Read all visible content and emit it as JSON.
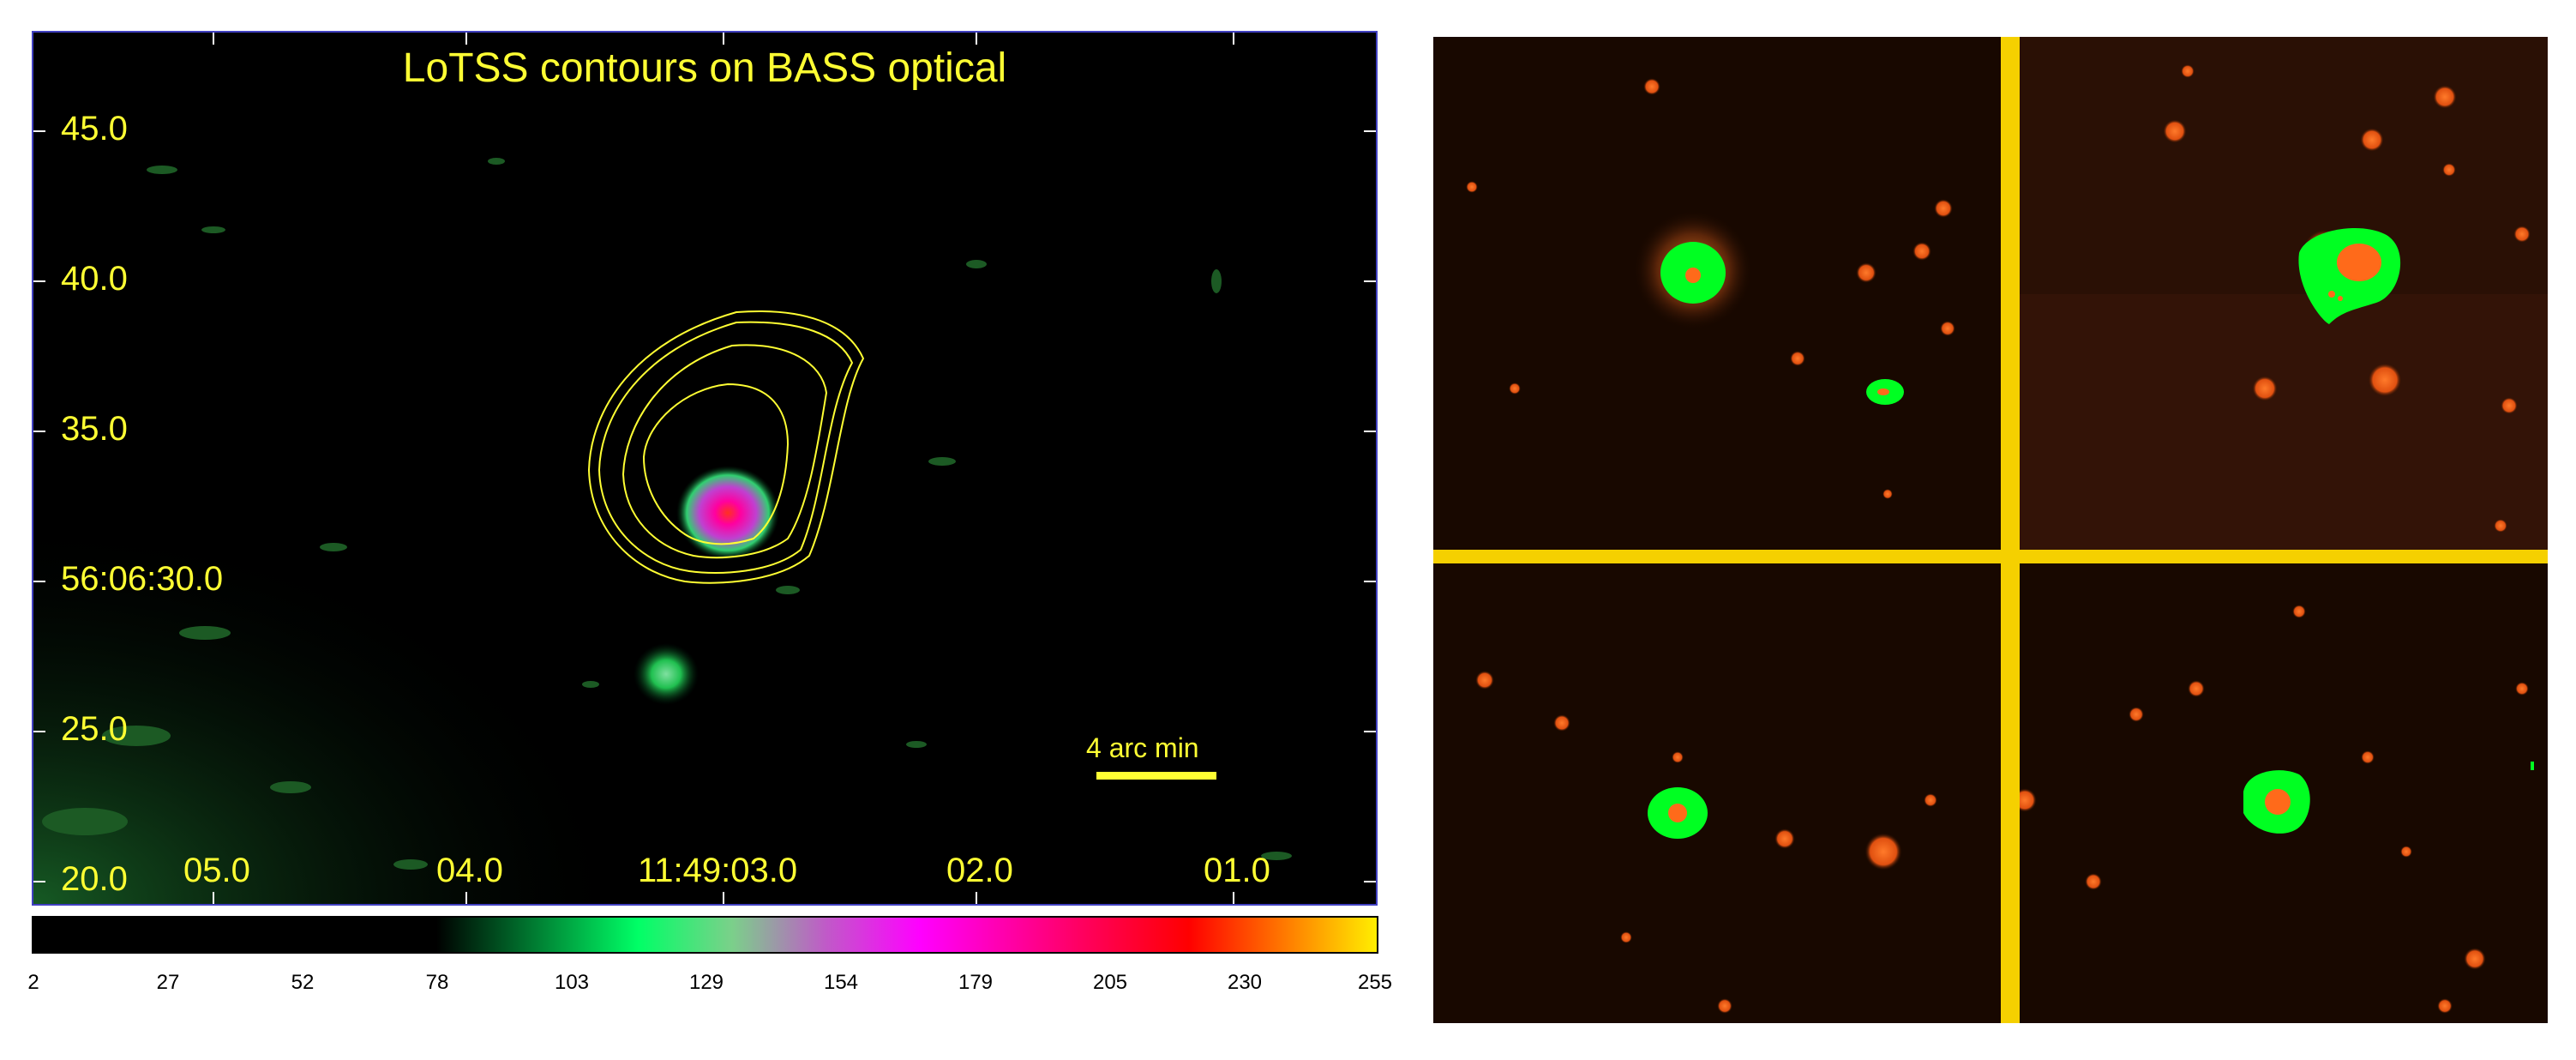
{
  "left_panel": {
    "title": "LoTSS contours on BASS optical",
    "y_ticks": [
      "45.0",
      "40.0",
      "35.0",
      "56:06:30.0",
      "25.0",
      "20.0"
    ],
    "x_ticks": [
      "05.0",
      "04.0",
      "11:49:03.0",
      "02.0",
      "01.0"
    ],
    "scalebar_label": "4 arc min",
    "text_color": "#ffff33",
    "contour_color": "#ffff33"
  },
  "colorbar": {
    "ticks": [
      "2",
      "27",
      "52",
      "78",
      "103",
      "129",
      "154",
      "179",
      "205",
      "230",
      "255"
    ]
  },
  "right_panel": {
    "background": "#180800",
    "source_color": "#00ff22",
    "star_color": "#ff6a1a",
    "crosshair_color": "#f5d000"
  }
}
